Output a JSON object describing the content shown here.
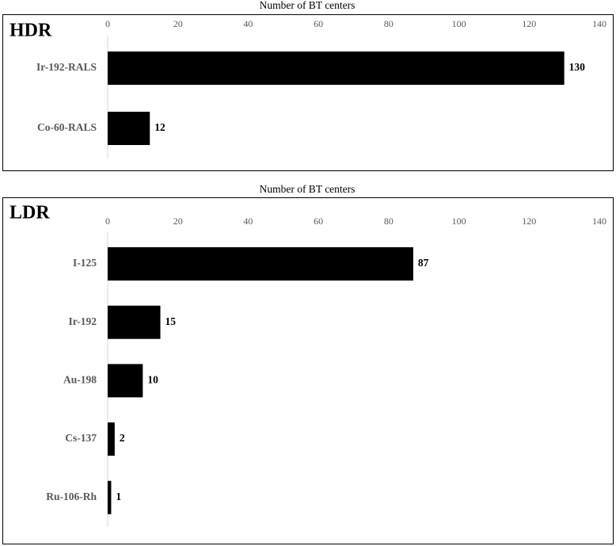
{
  "chart_data": [
    {
      "type": "bar",
      "orientation": "horizontal",
      "panel_label": "HDR",
      "xlabel": "Number of BT centers",
      "categories": [
        "Ir-192-RALS",
        "Co-60-RALS"
      ],
      "values": [
        130,
        12
      ],
      "color": "#000000",
      "xlim": [
        0,
        140
      ],
      "xticks": [
        0,
        20,
        40,
        60,
        80,
        100,
        120,
        140
      ],
      "grid": false
    },
    {
      "type": "bar",
      "orientation": "horizontal",
      "panel_label": "LDR",
      "xlabel": "Number of BT centers",
      "categories": [
        "I-125",
        "Ir-192",
        "Au-198",
        "Cs-137",
        "Ru-106-Rh"
      ],
      "values": [
        87,
        15,
        10,
        2,
        1
      ],
      "color": "#000000",
      "xlim": [
        0,
        140
      ],
      "xticks": [
        0,
        20,
        40,
        60,
        80,
        100,
        120,
        140
      ],
      "grid": false
    }
  ]
}
